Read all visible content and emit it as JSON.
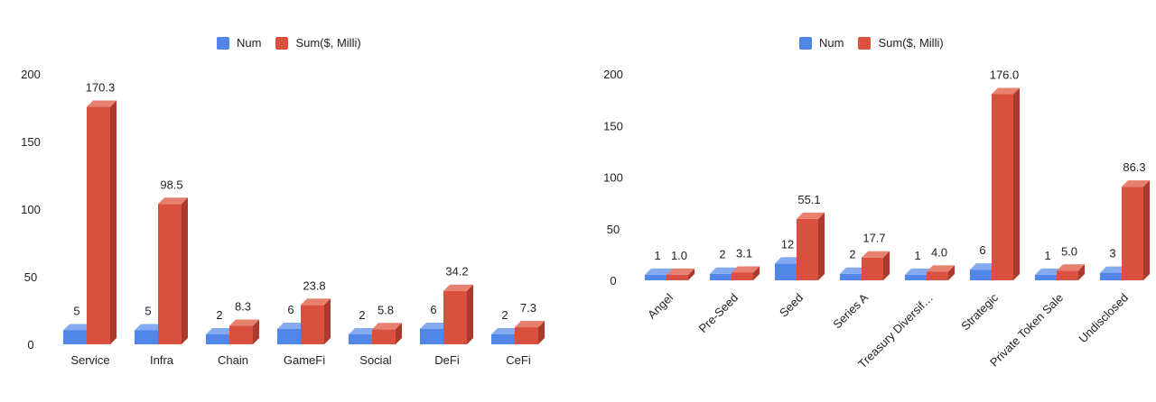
{
  "chart_data": [
    {
      "type": "bar",
      "categories": [
        "Service",
        "Infra",
        "Chain",
        "GameFi",
        "Social",
        "DeFi",
        "CeFi"
      ],
      "series": [
        {
          "name": "Num",
          "values": [
            5,
            5,
            2,
            6,
            2,
            6,
            2
          ],
          "labels": [
            "5",
            "5",
            "2",
            "6",
            "2",
            "6",
            "2"
          ]
        },
        {
          "name": "Sum($, Milli)",
          "values": [
            170.3,
            98.5,
            8.3,
            23.8,
            5.8,
            34.2,
            7.3
          ],
          "labels": [
            "170.3",
            "98.5",
            "8.3",
            "23.8",
            "5.8",
            "34.2",
            "7.3"
          ]
        }
      ],
      "ylim": [
        0,
        200
      ],
      "yticks": [
        "0",
        "50",
        "100",
        "150",
        "200"
      ],
      "grid": false,
      "legend": "top-center"
    },
    {
      "type": "bar",
      "categories": [
        "Angel",
        "Pre-Seed",
        "Seed",
        "Series A",
        "Treasury Diversif…",
        "Strategic",
        "Private Token Sale",
        "Undisclosed"
      ],
      "series": [
        {
          "name": "Num",
          "values": [
            1,
            2,
            12,
            2,
            1,
            6,
            1,
            3
          ],
          "labels": [
            "1",
            "2",
            "12",
            "2",
            "1",
            "6",
            "1",
            "3"
          ]
        },
        {
          "name": "Sum($, Milli)",
          "values": [
            1.0,
            3.1,
            55.1,
            17.7,
            4.0,
            176.0,
            5.0,
            86.3
          ],
          "labels": [
            "1.0",
            "3.1",
            "55.1",
            "17.7",
            "4.0",
            "176.0",
            "5.0",
            "86.3"
          ]
        }
      ],
      "ylim": [
        0,
        200
      ],
      "yticks": [
        "0",
        "50",
        "100",
        "150",
        "200"
      ],
      "grid": false,
      "legend": "top-center"
    }
  ],
  "colors": {
    "num_front": "#4f86e8",
    "num_side": "#3a66bf",
    "num_top": "#86aaf0",
    "sum_front": "#d9503f",
    "sum_side": "#a93a2c",
    "sum_top": "#e8806f"
  }
}
